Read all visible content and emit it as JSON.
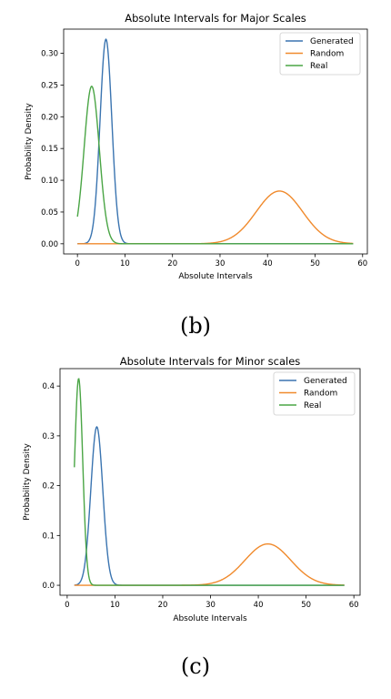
{
  "panel_labels": [
    "(b)",
    "(c)"
  ],
  "colors": {
    "generated": "#3a74b0",
    "random": "#f08a2c",
    "real": "#4aa545"
  },
  "chart_data": [
    {
      "type": "line",
      "title": "Absolute Intervals for Major Scales",
      "xlabel": "Absolute Intervals",
      "ylabel": "Probability Density",
      "xlim": [
        -2.9,
        61
      ],
      "ylim": [
        -0.016,
        0.338
      ],
      "xticks": [
        0,
        10,
        20,
        30,
        40,
        50,
        60
      ],
      "yticks": [
        0.0,
        0.05,
        0.1,
        0.15,
        0.2,
        0.25,
        0.3
      ],
      "ytick_labels": [
        "0.00",
        "0.05",
        "0.10",
        "0.15",
        "0.20",
        "0.25",
        "0.30"
      ],
      "grid": false,
      "legend_position": "top-right",
      "series": [
        {
          "name": "Generated",
          "color": "#3a74b0",
          "x_range": [
            0,
            58
          ],
          "mean": 6.0,
          "std": 1.24,
          "peak": 0.322
        },
        {
          "name": "Random",
          "color": "#f08a2c",
          "x_range": [
            0,
            58
          ],
          "mean": 42.5,
          "std": 4.9,
          "peak": 0.083
        },
        {
          "name": "Real",
          "color": "#4aa545",
          "x_range": [
            0,
            58
          ],
          "mean": 3.0,
          "std": 1.6,
          "peak": 0.248
        }
      ]
    },
    {
      "type": "line",
      "title": "Absolute Intervals for Minor scales",
      "xlabel": "Absolute Intervals",
      "ylabel": "Probability Density",
      "xlim": [
        -1.5,
        61.3
      ],
      "ylim": [
        -0.02,
        0.435
      ],
      "xticks": [
        0,
        10,
        20,
        30,
        40,
        50,
        60
      ],
      "yticks": [
        0.0,
        0.1,
        0.2,
        0.3,
        0.4
      ],
      "ytick_labels": [
        "0.0",
        "0.1",
        "0.2",
        "0.3",
        "0.4"
      ],
      "grid": false,
      "legend_position": "top-right",
      "series": [
        {
          "name": "Generated",
          "color": "#3a74b0",
          "x_range": [
            1.5,
            58
          ],
          "mean": 6.2,
          "std": 1.25,
          "peak": 0.318
        },
        {
          "name": "Random",
          "color": "#f08a2c",
          "x_range": [
            1.5,
            58
          ],
          "mean": 42.0,
          "std": 4.8,
          "peak": 0.083
        },
        {
          "name": "Real",
          "color": "#4aa545",
          "x_range": [
            1.5,
            58
          ],
          "mean": 2.4,
          "std": 0.85,
          "peak": 0.415
        }
      ]
    }
  ]
}
